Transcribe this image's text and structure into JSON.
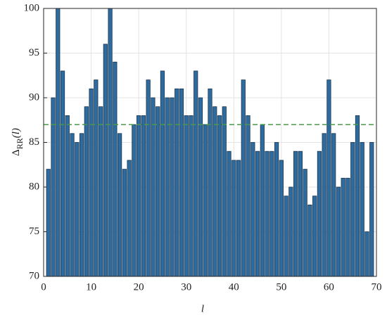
{
  "chart_data": {
    "type": "bar",
    "xlabel": "l",
    "ylabel": {
      "symbol": "Δ",
      "subscript": "RR",
      "argument": "(l)"
    },
    "x": [
      1,
      2,
      3,
      4,
      5,
      6,
      7,
      8,
      9,
      10,
      11,
      12,
      13,
      14,
      15,
      16,
      17,
      18,
      19,
      20,
      21,
      22,
      23,
      24,
      25,
      26,
      27,
      28,
      29,
      30,
      31,
      32,
      33,
      34,
      35,
      36,
      37,
      38,
      39,
      40,
      41,
      42,
      43,
      44,
      45,
      46,
      47,
      48,
      49,
      50,
      51,
      52,
      53,
      54,
      55,
      56,
      57,
      58,
      59,
      60,
      61,
      62,
      63,
      64,
      65,
      66,
      67,
      68,
      69
    ],
    "values": [
      82,
      90,
      100,
      93,
      88,
      86,
      85,
      86,
      89,
      91,
      92,
      89,
      96,
      100,
      94,
      86,
      82,
      83,
      87,
      88,
      88,
      92,
      90,
      89,
      93,
      90,
      90,
      91,
      91,
      88,
      88,
      93,
      90,
      87,
      91,
      89,
      88,
      89,
      84,
      83,
      83,
      92,
      88,
      85,
      84,
      87,
      84,
      84,
      85,
      83,
      79,
      80,
      84,
      84,
      82,
      78,
      79,
      84,
      86,
      92,
      86,
      80,
      81,
      81,
      85,
      88,
      85,
      75,
      85
    ],
    "color": "#2e6b9e",
    "edge_color": "#1a3550",
    "reference_line": {
      "value": 87,
      "color": "#4a9a4a",
      "style": "dashed"
    },
    "xlim": [
      0,
      70
    ],
    "xticks": [
      0,
      10,
      20,
      30,
      40,
      50,
      60,
      70
    ],
    "ylim": [
      70,
      100
    ],
    "yticks": [
      70,
      75,
      80,
      85,
      90,
      95,
      100
    ],
    "grid": true
  }
}
